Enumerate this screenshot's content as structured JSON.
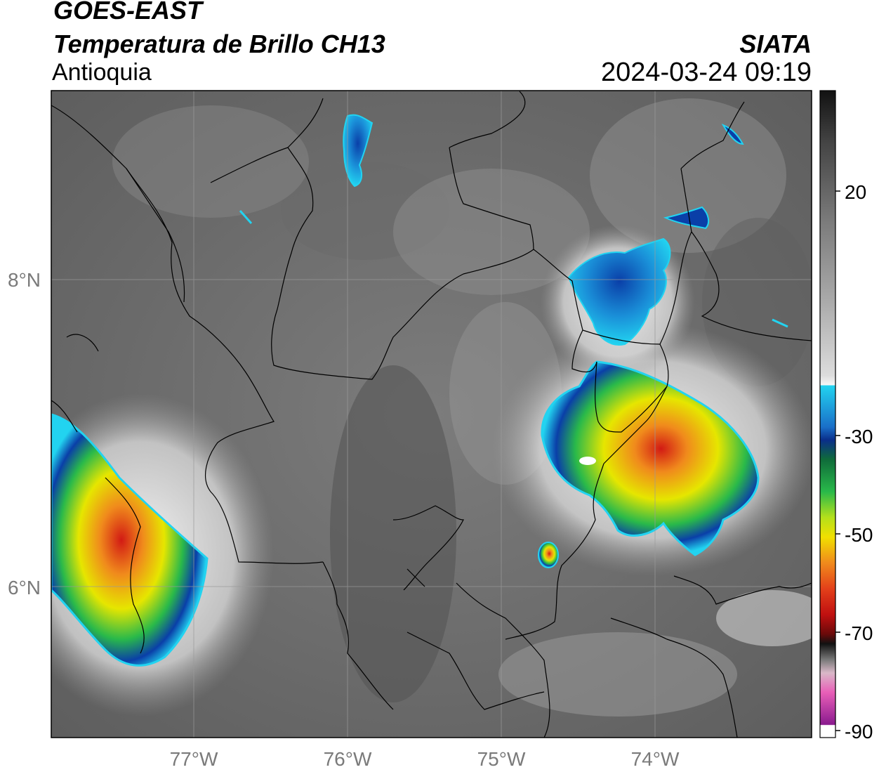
{
  "header": {
    "satellite": "GOES-EAST",
    "product": "Temperatura de Brillo CH13",
    "region": "Antioquia",
    "source": "SIATA",
    "timestamp": "2024-03-24 09:19"
  },
  "map": {
    "lon_range": [
      -77.9,
      -72.95
    ],
    "lat_range": [
      5.1,
      9.0
    ],
    "lat_labels": [
      "8°N",
      "6°N"
    ],
    "lon_labels": [
      "77°W",
      "76°W",
      "75°W",
      "74°W"
    ],
    "gridlines": true
  },
  "colorbar": {
    "ticks": [
      "20",
      "-30",
      "-50",
      "-70",
      "-90"
    ],
    "colors": {
      "warm_gray": "#666666",
      "cold_white": "#f2f2f2",
      "cyan": "#22d3f0",
      "blue": "#0a3fa8",
      "green": "#29b94a",
      "yellow": "#e6e600",
      "orange": "#f08a1c",
      "red": "#d21a14",
      "black": "#111111",
      "magenta": "#b13fb5"
    }
  }
}
